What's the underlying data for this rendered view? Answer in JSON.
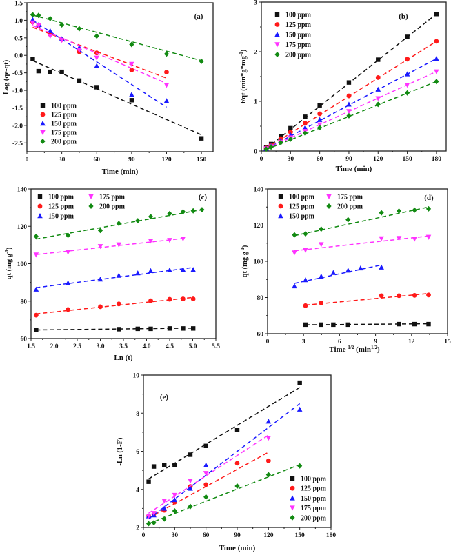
{
  "colors": {
    "100 ppm": "#111111",
    "125 ppm": "#ff1a1a",
    "150 ppm": "#1a1aff",
    "175 ppm": "#ff33ff",
    "200 ppm": "#128a12"
  },
  "markers": {
    "100 ppm": "square",
    "125 ppm": "circle",
    "150 ppm": "triangle-up",
    "175 ppm": "triangle-down",
    "200 ppm": "diamond"
  },
  "chart_data": [
    {
      "panel_label": "(a)",
      "type": "scatter",
      "xlabel": [
        {
          "t": "Time (min)"
        }
      ],
      "ylabel": [
        {
          "t": "Log (qe-qt)"
        }
      ],
      "xlim": [
        0,
        160
      ],
      "ylim": [
        -2.75,
        1.5
      ],
      "xticks": [
        0,
        30,
        60,
        90,
        120,
        150
      ],
      "xtick_labels": [
        "0",
        "30",
        "60",
        "90",
        "120",
        "150"
      ],
      "yticks": [
        -2.5,
        -2,
        -1.5,
        -1,
        -0.5,
        0,
        0.5,
        1,
        1.5
      ],
      "ytick_labels": [
        "-2.5",
        "-2.0",
        "-1.5",
        "-1.0",
        "-0.5",
        "0.0",
        "0.5",
        "1.0",
        "1.5"
      ],
      "legend": "bottom-left",
      "series": [
        {
          "name": "100 ppm",
          "x": [
            5,
            10,
            20,
            30,
            45,
            60,
            90,
            150
          ],
          "y": [
            -0.1,
            -0.45,
            -0.47,
            -0.47,
            -0.72,
            -0.91,
            -1.28,
            -2.37
          ],
          "fit": [
            [
              5,
              -0.15
            ],
            [
              150,
              -2.27
            ]
          ]
        },
        {
          "name": "125 ppm",
          "x": [
            5,
            10,
            20,
            30,
            45,
            60,
            90,
            120
          ],
          "y": [
            0.95,
            0.85,
            0.6,
            0.45,
            0.1,
            0.07,
            -0.42,
            -0.48
          ],
          "fit": [
            [
              5,
              0.8
            ],
            [
              120,
              -0.65
            ]
          ]
        },
        {
          "name": "150 ppm",
          "x": [
            5,
            10,
            20,
            30,
            45,
            60,
            90,
            120
          ],
          "y": [
            1.02,
            0.87,
            0.7,
            0.47,
            0.22,
            -0.3,
            -1.12,
            -1.3
          ],
          "fit": [
            [
              5,
              1.0
            ],
            [
              120,
              -1.48
            ]
          ]
        },
        {
          "name": "175 ppm",
          "x": [
            5,
            10,
            20,
            30,
            45,
            60,
            90,
            120
          ],
          "y": [
            0.93,
            0.85,
            0.55,
            0.43,
            0.15,
            -0.07,
            -0.25,
            -0.85
          ],
          "fit": [
            [
              5,
              0.85
            ],
            [
              120,
              -0.8
            ]
          ]
        },
        {
          "name": "200 ppm",
          "x": [
            5,
            10,
            20,
            30,
            45,
            60,
            90,
            120,
            150
          ],
          "y": [
            1.16,
            1.14,
            1.05,
            0.87,
            0.76,
            0.55,
            0.31,
            0.04,
            -0.17
          ],
          "fit": [
            [
              5,
              1.15
            ],
            [
              150,
              -0.15
            ]
          ]
        }
      ]
    },
    {
      "panel_label": "(b)",
      "type": "scatter",
      "xlabel": [
        {
          "t": "Time (min)"
        }
      ],
      "ylabel": [
        {
          "t": "t/qt (min*g*mg"
        },
        {
          "t": "-1",
          "sup": true
        },
        {
          "t": ")"
        }
      ],
      "xlim": [
        0,
        190
      ],
      "ylim": [
        0,
        3
      ],
      "xticks": [
        0,
        30,
        60,
        90,
        120,
        150,
        180
      ],
      "xtick_labels": [
        "0",
        "30",
        "60",
        "90",
        "120",
        "150",
        "180"
      ],
      "yticks": [
        0,
        1,
        2,
        3
      ],
      "ytick_labels": [
        "0",
        "1",
        "2",
        "3"
      ],
      "legend": "top-left",
      "series": [
        {
          "name": "100 ppm",
          "x": [
            5,
            10,
            20,
            30,
            45,
            60,
            90,
            120,
            150,
            180
          ],
          "y": [
            0.07,
            0.14,
            0.3,
            0.46,
            0.69,
            0.92,
            1.38,
            1.84,
            2.3,
            2.76
          ],
          "fit": [
            [
              5,
              0.05
            ],
            [
              180,
              2.76
            ]
          ]
        },
        {
          "name": "125 ppm",
          "x": [
            5,
            10,
            20,
            30,
            45,
            60,
            90,
            120,
            150,
            180
          ],
          "y": [
            0.06,
            0.12,
            0.25,
            0.38,
            0.56,
            0.75,
            1.11,
            1.48,
            1.85,
            2.21
          ],
          "fit": [
            [
              5,
              0.05
            ],
            [
              180,
              2.21
            ]
          ]
        },
        {
          "name": "150 ppm",
          "x": [
            5,
            10,
            20,
            30,
            45,
            60,
            90,
            120,
            150,
            180
          ],
          "y": [
            0.05,
            0.1,
            0.21,
            0.32,
            0.47,
            0.63,
            0.94,
            1.24,
            1.55,
            1.86
          ],
          "fit": [
            [
              5,
              0.04
            ],
            [
              180,
              1.86
            ]
          ]
        },
        {
          "name": "175 ppm",
          "x": [
            5,
            10,
            20,
            30,
            45,
            60,
            90,
            120,
            150,
            180
          ],
          "y": [
            0.05,
            0.09,
            0.18,
            0.27,
            0.4,
            0.53,
            0.8,
            1.06,
            1.33,
            1.6
          ],
          "fit": [
            [
              5,
              0.04
            ],
            [
              180,
              1.6
            ]
          ]
        },
        {
          "name": "200 ppm",
          "x": [
            5,
            10,
            20,
            30,
            45,
            60,
            90,
            120,
            150,
            180
          ],
          "y": [
            0.04,
            0.08,
            0.17,
            0.24,
            0.36,
            0.47,
            0.71,
            0.94,
            1.17,
            1.4
          ],
          "fit": [
            [
              5,
              0.03
            ],
            [
              180,
              1.4
            ]
          ]
        }
      ]
    },
    {
      "panel_label": "(c)",
      "type": "scatter",
      "xlabel": [
        {
          "t": "Ln (t)"
        }
      ],
      "ylabel": [
        {
          "t": "qt (mg g"
        },
        {
          "t": "-1",
          "sup": true
        },
        {
          "t": ")"
        }
      ],
      "xlim": [
        1.5,
        5.5
      ],
      "ylim": [
        60,
        140
      ],
      "xticks": [
        1.5,
        2,
        2.5,
        3,
        3.5,
        4,
        4.5,
        5,
        5.5
      ],
      "xtick_labels": [
        "1.5",
        "2.0",
        "2.5",
        "3.0",
        "3.5",
        "4.0",
        "4.5",
        "5.0",
        "5.5"
      ],
      "yticks": [
        60,
        80,
        100,
        120,
        140
      ],
      "ytick_labels": [
        "60",
        "80",
        "100",
        "120",
        "140"
      ],
      "legend": "top-left",
      "series": [
        {
          "name": "100 ppm",
          "x": [
            1.61,
            3.4,
            3.81,
            4.09,
            4.5,
            4.79,
            5.01
          ],
          "y": [
            64.5,
            65,
            65.2,
            65.2,
            65.4,
            65.4,
            65.4
          ],
          "fit": [
            [
              1.61,
              64.6
            ],
            [
              5.01,
              65.6
            ]
          ]
        },
        {
          "name": "125 ppm",
          "x": [
            1.61,
            2.3,
            3.0,
            3.4,
            4.09,
            4.5,
            4.79,
            5.01
          ],
          "y": [
            72.5,
            75.5,
            77,
            78.5,
            80.2,
            81,
            81.2,
            81.2
          ],
          "fit": [
            [
              1.61,
              73.2
            ],
            [
              5.01,
              82
            ]
          ]
        },
        {
          "name": "150 ppm",
          "x": [
            1.61,
            2.3,
            3.0,
            3.4,
            3.81,
            4.09,
            4.5,
            4.79,
            5.01
          ],
          "y": [
            86.3,
            89.7,
            91.7,
            93.7,
            95,
            96.2,
            96.6,
            96.8,
            96.8
          ],
          "fit": [
            [
              1.61,
              87.2
            ],
            [
              5.01,
              98
            ]
          ]
        },
        {
          "name": "175 ppm",
          "x": [
            1.61,
            2.3,
            3.0,
            3.4,
            4.09,
            4.5,
            4.79
          ],
          "y": [
            104.8,
            106.2,
            109.3,
            110.2,
            112.2,
            112.6,
            113.4
          ],
          "fit": [
            [
              1.61,
              104.9
            ],
            [
              4.79,
              113.5
            ]
          ]
        },
        {
          "name": "200 ppm",
          "x": [
            1.61,
            2.3,
            3.0,
            3.4,
            3.81,
            4.09,
            4.5,
            4.79,
            5.01,
            5.2
          ],
          "y": [
            114.6,
            115.2,
            117.8,
            121.5,
            123,
            125.2,
            126.8,
            127.8,
            128.3,
            128.9
          ],
          "fit": [
            [
              1.61,
              113.2
            ],
            [
              5.2,
              128.9
            ]
          ]
        }
      ]
    },
    {
      "panel_label": "(d)",
      "type": "scatter",
      "xlabel": [
        {
          "t": "Time "
        },
        {
          "t": "1/2",
          "sup": true
        },
        {
          "t": " (min"
        },
        {
          "t": "1/2",
          "sup": true
        },
        {
          "t": ")"
        }
      ],
      "ylabel": [
        {
          "t": "qt (mg g"
        },
        {
          "t": "-1",
          "sup": true
        },
        {
          "t": ")"
        }
      ],
      "xlim": [
        0,
        15
      ],
      "ylim": [
        60,
        140
      ],
      "xticks": [
        0,
        3,
        6,
        9,
        12,
        15
      ],
      "xtick_labels": [
        "0",
        "3",
        "6",
        "9",
        "12",
        "15"
      ],
      "yticks": [
        60,
        80,
        100,
        120,
        140
      ],
      "ytick_labels": [
        "60",
        "80",
        "100",
        "120",
        "140"
      ],
      "legend": "top-left",
      "series": [
        {
          "name": "100 ppm",
          "x": [
            3.16,
            4.47,
            5.48,
            6.71,
            10.95,
            12.25,
            13.42
          ],
          "y": [
            65,
            65,
            65,
            65,
            65.3,
            65.3,
            65.3
          ],
          "fit": [
            [
              3.16,
              64.9
            ],
            [
              13.42,
              65.5
            ]
          ]
        },
        {
          "name": "125 ppm",
          "x": [
            3.16,
            4.47,
            9.49,
            10.95,
            12.25,
            13.42
          ],
          "y": [
            75.5,
            77,
            81,
            81,
            81.2,
            81.4
          ],
          "fit": [
            [
              3.16,
              75.8
            ],
            [
              13.42,
              82.2
            ]
          ]
        },
        {
          "name": "150 ppm",
          "x": [
            2.24,
            3.16,
            4.47,
            5.48,
            6.71,
            7.75,
            9.49
          ],
          "y": [
            86.3,
            89.7,
            91.7,
            93.7,
            95,
            96.2,
            96.7
          ],
          "fit": [
            [
              2.24,
              87.8
            ],
            [
              9.49,
              98
            ]
          ]
        },
        {
          "name": "175 ppm",
          "x": [
            2.24,
            3.16,
            4.47,
            9.49,
            10.95,
            12.25,
            13.42
          ],
          "y": [
            104.8,
            106.2,
            109.3,
            112.6,
            112.8,
            112.4,
            113.4
          ],
          "fit": [
            [
              2.24,
              105.8
            ],
            [
              13.42,
              114
            ]
          ]
        },
        {
          "name": "200 ppm",
          "x": [
            2.24,
            3.16,
            4.47,
            6.71,
            9.49,
            10.95,
            12.25,
            13.42
          ],
          "y": [
            114.6,
            115.2,
            117.8,
            123,
            126.8,
            127.8,
            128.3,
            129
          ],
          "fit": [
            [
              2.24,
              114.2
            ],
            [
              13.42,
              130
            ]
          ]
        }
      ]
    },
    {
      "panel_label": "(e)",
      "type": "scatter",
      "xlabel": [
        {
          "t": "Time (min)"
        }
      ],
      "ylabel": [
        {
          "t": "-Ln (1-F)"
        }
      ],
      "xlim": [
        0,
        180
      ],
      "ylim": [
        2,
        10
      ],
      "xticks": [
        0,
        30,
        60,
        90,
        120,
        150,
        180
      ],
      "xtick_labels": [
        "0",
        "30",
        "60",
        "90",
        "120",
        "150",
        "180"
      ],
      "yticks": [
        2,
        4,
        6,
        8,
        10
      ],
      "ytick_labels": [
        "2",
        "4",
        "6",
        "8",
        "10"
      ],
      "legend": "bottom-right",
      "series": [
        {
          "name": "100 ppm",
          "x": [
            5,
            10,
            20,
            30,
            45,
            60,
            90,
            150
          ],
          "y": [
            4.4,
            5.2,
            5.27,
            5.27,
            5.82,
            6.28,
            7.13,
            9.6
          ],
          "fit": [
            [
              5,
              4.55
            ],
            [
              150,
              9.35
            ]
          ]
        },
        {
          "name": "125 ppm",
          "x": [
            5,
            10,
            20,
            30,
            45,
            60,
            90,
            120
          ],
          "y": [
            2.6,
            2.7,
            2.9,
            3.33,
            4.15,
            4.25,
            5.37,
            5.5
          ],
          "fit": [
            [
              5,
              2.5
            ],
            [
              120,
              5.95
            ]
          ]
        },
        {
          "name": "150 ppm",
          "x": [
            5,
            10,
            20,
            30,
            45,
            60,
            120,
            150
          ],
          "y": [
            2.6,
            2.65,
            3.0,
            3.45,
            4.05,
            5.27,
            7.57,
            8.2
          ],
          "fit": [
            [
              5,
              2.45
            ],
            [
              150,
              8.5
            ]
          ]
        },
        {
          "name": "175 ppm",
          "x": [
            5,
            10,
            20,
            30,
            45,
            60,
            120
          ],
          "y": [
            2.6,
            2.75,
            3.4,
            3.7,
            4.45,
            4.85,
            6.7
          ],
          "fit": [
            [
              5,
              2.75
            ],
            [
              120,
              6.85
            ]
          ]
        },
        {
          "name": "200 ppm",
          "x": [
            5,
            10,
            20,
            30,
            45,
            60,
            90,
            120,
            150
          ],
          "y": [
            2.2,
            2.25,
            2.45,
            2.87,
            3.1,
            3.6,
            4.17,
            4.77,
            5.23
          ],
          "fit": [
            [
              5,
              2.2
            ],
            [
              150,
              5.3
            ]
          ]
        }
      ]
    }
  ]
}
